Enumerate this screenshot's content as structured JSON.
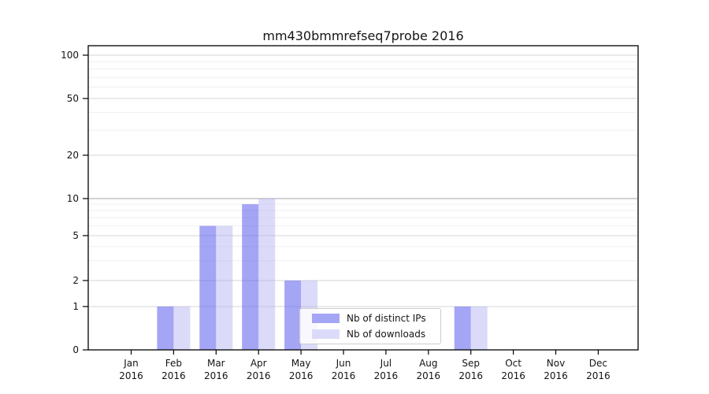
{
  "title": "mm430bmmrefseq7probe 2016",
  "chart_data": {
    "type": "bar",
    "categories": [
      "Jan 2016",
      "Feb 2016",
      "Mar 2016",
      "Apr 2016",
      "May 2016",
      "Jun 2016",
      "Jul 2016",
      "Aug 2016",
      "Sep 2016",
      "Oct 2016",
      "Nov 2016",
      "Dec 2016"
    ],
    "months": [
      "Jan",
      "Feb",
      "Mar",
      "Apr",
      "May",
      "Jun",
      "Jul",
      "Aug",
      "Sep",
      "Oct",
      "Nov",
      "Dec"
    ],
    "year": "2016",
    "series": [
      {
        "name": "Nb of distinct IPs",
        "values": [
          0,
          1,
          6,
          9,
          2,
          0,
          0,
          0,
          1,
          0,
          0,
          0
        ],
        "fill": "rgba(100,100,240,0.58)",
        "legend_swatch": "#a5a5f6"
      },
      {
        "name": "Nb of downloads",
        "values": [
          0,
          1,
          6,
          10,
          2,
          0,
          0,
          0,
          1,
          0,
          0,
          0
        ],
        "fill": "rgba(170,170,240,0.42)",
        "legend_swatch": "#dbdbf9"
      }
    ],
    "title": "mm430bmmrefseq7probe 2016",
    "xlabel": "",
    "ylabel": "",
    "ylim": [
      0,
      100
    ],
    "y_axis": {
      "scale": "log-like with linear 0-1 segment",
      "major_ticks": [
        0,
        1,
        2,
        5,
        10,
        20,
        50,
        100
      ],
      "major_tick_labels": [
        "0",
        "1",
        "2",
        "5",
        "10",
        "20",
        "50",
        "100"
      ],
      "minor_ticks": [
        3,
        4,
        6,
        7,
        8,
        9,
        30,
        40,
        60,
        70,
        80,
        90
      ],
      "emphasized_gridline_value": 10
    },
    "grid": true,
    "legend_position": "inside bottom-center"
  },
  "colors": {
    "grid_major": "#dedede",
    "grid_minor": "#efefef",
    "grid_emphasis": "#b8b8b8",
    "axis": "#000000",
    "text": "#141414",
    "background": "#ffffff"
  }
}
